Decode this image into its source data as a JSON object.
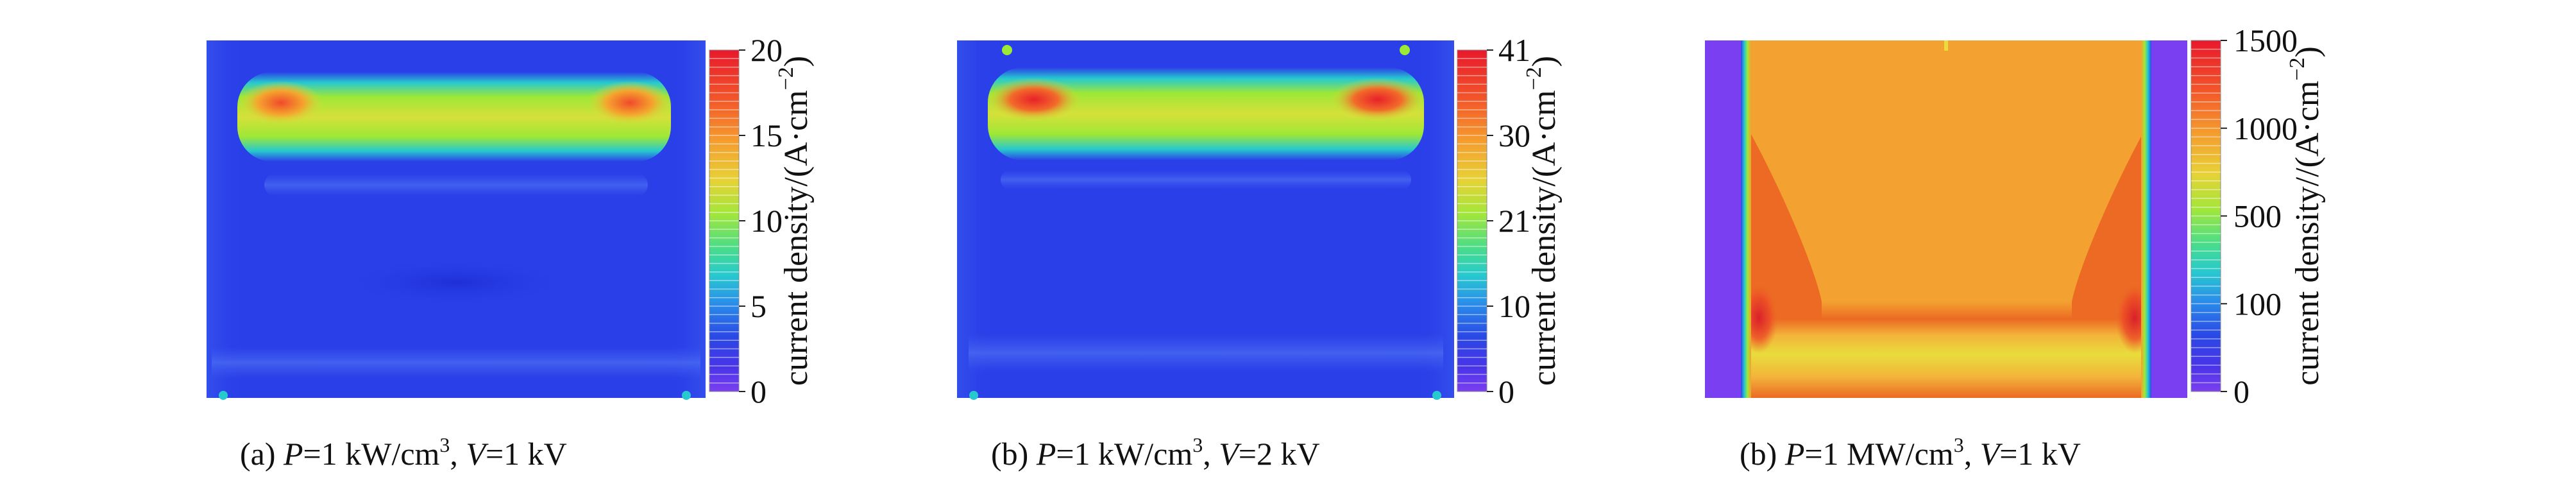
{
  "chart_data": [
    {
      "type": "heatmap",
      "caption": "(a) P=1 kW/cm³, V=1 kV",
      "caption_parts": {
        "label": "(a) ",
        "p_var": "P",
        "p_val": "=1 kW/cm",
        "sup": "3",
        "sep": ", ",
        "v_var": "V",
        "v_val": "=1 kV"
      },
      "colorbar_label": "current density/(A·cm⁻²)",
      "colorbar_label_parts": {
        "main": "current density/(A·cm",
        "sup": "−2",
        "close": ")"
      },
      "colorbar_ticks": [
        "20",
        "15",
        "10",
        "5",
        "0"
      ],
      "colorbar_tick_values": [
        20,
        15,
        10,
        5,
        0
      ],
      "colorbar_range": [
        0,
        20
      ],
      "field_values": {
        "background": 3.5,
        "hot_band": 15,
        "hot_edges": 19,
        "center_dip": 2.5
      },
      "colors": {
        "background": "#2a3fe8",
        "band": "#9ee836",
        "peak": "#f04a2a"
      }
    },
    {
      "type": "heatmap",
      "caption": "(b) P=1 kW/cm³, V=2 kV",
      "caption_parts": {
        "label": "(b) ",
        "p_var": "P",
        "p_val": "=1 kW/cm",
        "sup": "3",
        "sep": ", ",
        "v_var": "V",
        "v_val": "=2 kV"
      },
      "colorbar_label": "current density/(A·cm⁻²)",
      "colorbar_label_parts": {
        "main": "current density/(A·cm",
        "sup": "−2",
        "close": ")"
      },
      "colorbar_ticks": [
        "41",
        "30",
        "21",
        "10",
        "0"
      ],
      "colorbar_tick_values": [
        41,
        30,
        21,
        10,
        0
      ],
      "colorbar_range": [
        0,
        41
      ],
      "field_values": {
        "background": 6,
        "hot_band": 30,
        "hot_edges": 39
      },
      "colors": {
        "background": "#2a3fe8",
        "band": "#9ee836",
        "peak": "#f04a2a"
      }
    },
    {
      "type": "heatmap",
      "caption": "(b) P=1 MW/cm³, V=1 kV",
      "caption_parts": {
        "label": "(b) ",
        "p_var": "P",
        "p_val": "=1 MW/cm",
        "sup": "3",
        "sep": ", ",
        "v_var": "V",
        "v_val": "=1 kV"
      },
      "colorbar_label": "current density//(A·cm⁻²)",
      "colorbar_label_parts": {
        "main": "current density//(A·cm",
        "sup": "−2",
        "close": ")"
      },
      "colorbar_ticks": [
        "1500",
        "1000",
        "500",
        "100",
        "0"
      ],
      "colorbar_tick_values": [
        1500,
        1000,
        500,
        100,
        0
      ],
      "colorbar_range": [
        0,
        1500
      ],
      "field_values": {
        "background": 1150,
        "lower_lobes": 1300,
        "bottom_band": 1100,
        "side_walls": 0
      },
      "colors": {
        "background": "#f3a130",
        "lobe": "#ec6a24",
        "side": "#7a3ff0"
      }
    }
  ]
}
